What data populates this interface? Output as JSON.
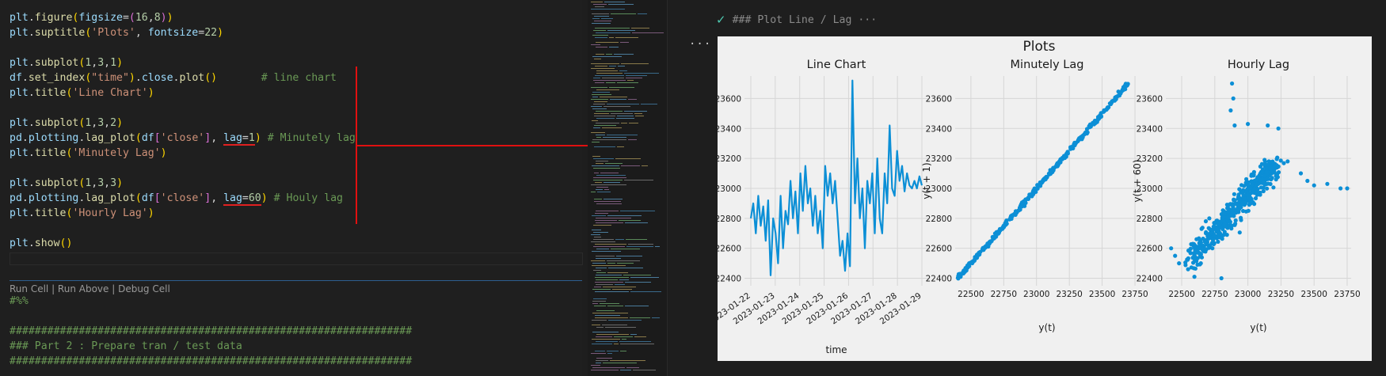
{
  "code_lines": [
    {
      "parts": [
        [
          "t-var",
          "plt"
        ],
        [
          "t-pn",
          "."
        ],
        [
          "t-fn",
          "figure"
        ],
        [
          "t-br1",
          "("
        ],
        [
          "t-var",
          "figsize"
        ],
        [
          "t-pn",
          "="
        ],
        [
          "t-br2",
          "("
        ],
        [
          "t-num",
          "16"
        ],
        [
          "t-pn",
          ","
        ],
        [
          "t-num",
          "8"
        ],
        [
          "t-br2",
          ")"
        ],
        [
          "t-br1",
          ")"
        ]
      ]
    },
    {
      "parts": [
        [
          "t-var",
          "plt"
        ],
        [
          "t-pn",
          "."
        ],
        [
          "t-fn",
          "suptitle"
        ],
        [
          "t-br1",
          "("
        ],
        [
          "t-str",
          "'Plots'"
        ],
        [
          "t-pn",
          ", "
        ],
        [
          "t-var",
          "fontsize"
        ],
        [
          "t-pn",
          "="
        ],
        [
          "t-num",
          "22"
        ],
        [
          "t-br1",
          ")"
        ]
      ]
    },
    {
      "parts": []
    },
    {
      "parts": [
        [
          "t-var",
          "plt"
        ],
        [
          "t-pn",
          "."
        ],
        [
          "t-fn",
          "subplot"
        ],
        [
          "t-br1",
          "("
        ],
        [
          "t-num",
          "1"
        ],
        [
          "t-pn",
          ","
        ],
        [
          "t-num",
          "3"
        ],
        [
          "t-pn",
          ","
        ],
        [
          "t-num",
          "1"
        ],
        [
          "t-br1",
          ")"
        ]
      ]
    },
    {
      "parts": [
        [
          "t-var",
          "df"
        ],
        [
          "t-pn",
          "."
        ],
        [
          "t-fn",
          "set_index"
        ],
        [
          "t-br1",
          "("
        ],
        [
          "t-str",
          "\"time\""
        ],
        [
          "t-br1",
          ")"
        ],
        [
          "t-pn",
          "."
        ],
        [
          "t-var",
          "close"
        ],
        [
          "t-pn",
          "."
        ],
        [
          "t-fn",
          "plot"
        ],
        [
          "t-br1",
          "()"
        ],
        [
          "t-pn",
          "       "
        ],
        [
          "t-cm",
          "# line chart"
        ]
      ]
    },
    {
      "parts": [
        [
          "t-var",
          "plt"
        ],
        [
          "t-pn",
          "."
        ],
        [
          "t-fn",
          "title"
        ],
        [
          "t-br1",
          "("
        ],
        [
          "t-str",
          "'Line Chart'"
        ],
        [
          "t-br1",
          ")"
        ]
      ]
    },
    {
      "parts": []
    },
    {
      "parts": [
        [
          "t-var",
          "plt"
        ],
        [
          "t-pn",
          "."
        ],
        [
          "t-fn",
          "subplot"
        ],
        [
          "t-br1",
          "("
        ],
        [
          "t-num",
          "1"
        ],
        [
          "t-pn",
          ","
        ],
        [
          "t-num",
          "3"
        ],
        [
          "t-pn",
          ","
        ],
        [
          "t-num",
          "2"
        ],
        [
          "t-br1",
          ")"
        ]
      ]
    },
    {
      "parts": [
        [
          "t-var",
          "pd"
        ],
        [
          "t-pn",
          "."
        ],
        [
          "t-var",
          "plotting"
        ],
        [
          "t-pn",
          "."
        ],
        [
          "t-fn",
          "lag_plot"
        ],
        [
          "t-br1",
          "("
        ],
        [
          "t-var",
          "df"
        ],
        [
          "t-br2",
          "["
        ],
        [
          "t-str",
          "'close'"
        ],
        [
          "t-br2",
          "]"
        ],
        [
          "t-pn",
          ", "
        ],
        [
          "t-var ul",
          "lag"
        ],
        [
          "t-pn ul",
          "="
        ],
        [
          "t-num ul",
          "1"
        ],
        [
          "t-br1",
          ")"
        ],
        [
          "t-pn",
          " "
        ],
        [
          "t-cm",
          "# Minutely lag"
        ]
      ]
    },
    {
      "parts": [
        [
          "t-var",
          "plt"
        ],
        [
          "t-pn",
          "."
        ],
        [
          "t-fn",
          "title"
        ],
        [
          "t-br1",
          "("
        ],
        [
          "t-str",
          "'Minutely Lag'"
        ],
        [
          "t-br1",
          ")"
        ]
      ]
    },
    {
      "parts": []
    },
    {
      "parts": [
        [
          "t-var",
          "plt"
        ],
        [
          "t-pn",
          "."
        ],
        [
          "t-fn",
          "subplot"
        ],
        [
          "t-br1",
          "("
        ],
        [
          "t-num",
          "1"
        ],
        [
          "t-pn",
          ","
        ],
        [
          "t-num",
          "3"
        ],
        [
          "t-pn",
          ","
        ],
        [
          "t-num",
          "3"
        ],
        [
          "t-br1",
          ")"
        ]
      ]
    },
    {
      "parts": [
        [
          "t-var",
          "pd"
        ],
        [
          "t-pn",
          "."
        ],
        [
          "t-var",
          "plotting"
        ],
        [
          "t-pn",
          "."
        ],
        [
          "t-fn",
          "lag_plot"
        ],
        [
          "t-br1",
          "("
        ],
        [
          "t-var",
          "df"
        ],
        [
          "t-br2",
          "["
        ],
        [
          "t-str",
          "'close'"
        ],
        [
          "t-br2",
          "]"
        ],
        [
          "t-pn",
          ", "
        ],
        [
          "t-var ul",
          "lag"
        ],
        [
          "t-pn ul",
          "="
        ],
        [
          "t-num ul",
          "60"
        ],
        [
          "t-br1",
          ")"
        ],
        [
          "t-pn",
          " "
        ],
        [
          "t-cm",
          "# Houly lag"
        ]
      ]
    },
    {
      "parts": [
        [
          "t-var",
          "plt"
        ],
        [
          "t-pn",
          "."
        ],
        [
          "t-fn",
          "title"
        ],
        [
          "t-br1",
          "("
        ],
        [
          "t-str",
          "'Hourly Lag'"
        ],
        [
          "t-br1",
          ")"
        ]
      ]
    },
    {
      "parts": []
    },
    {
      "parts": [
        [
          "t-var",
          "plt"
        ],
        [
          "t-pn",
          "."
        ],
        [
          "t-fn",
          "show"
        ],
        [
          "t-br1",
          "()"
        ]
      ]
    }
  ],
  "codelens": "Run Cell | Run Above | Debug Cell",
  "code_after": [
    {
      "parts": [
        [
          "t-cm",
          "#%%"
        ]
      ]
    },
    {
      "parts": []
    },
    {
      "parts": [
        [
          "t-cm",
          "################################################################"
        ]
      ]
    },
    {
      "parts": [
        [
          "t-cm",
          "### Part 2 : Prepare tran / test data"
        ]
      ]
    },
    {
      "parts": [
        [
          "t-cm",
          "################################################################"
        ]
      ]
    }
  ],
  "output_header": "### Plot Line / Lag ···",
  "more_dots": "···",
  "chart_data": [
    {
      "type": "line",
      "suptitle": "Plots",
      "title": "Line Chart",
      "xlabel": "time",
      "ylabel": "",
      "x_ticks": [
        "2023-01-22",
        "2023-01-23",
        "2023-01-24",
        "2023-01-25",
        "2023-01-26",
        "2023-01-27",
        "2023-01-28",
        "2023-01-29"
      ],
      "y_ticks": [
        22400,
        22600,
        22800,
        23000,
        23200,
        23400,
        23600
      ],
      "ylim": [
        22350,
        23750
      ],
      "series": [
        {
          "values": [
            22800,
            22900,
            22700,
            22950,
            22750,
            22880,
            22650,
            22920,
            22420,
            22800,
            22700,
            22500,
            22950,
            22600,
            22850,
            22760,
            23050,
            22800,
            22980,
            22700,
            23100,
            22850,
            23150,
            22900,
            23000,
            22750,
            22950,
            22700,
            22850,
            22600,
            23150,
            22950,
            23100,
            22900,
            23050,
            22800,
            22550,
            22650,
            22450,
            22700,
            22480,
            23720,
            22900,
            23200,
            22800,
            23000,
            22600,
            23050,
            22900,
            23100,
            22700,
            23200,
            22800,
            22700,
            23100,
            22900,
            23420,
            23000,
            22950,
            23250,
            23050,
            23150,
            22980,
            23100,
            23020,
            23000,
            23050,
            23000,
            23080,
            23020
          ]
        }
      ]
    },
    {
      "type": "scatter",
      "title": "Minutely Lag",
      "xlabel": "y(t)",
      "ylabel": "y(t + 1)",
      "x_ticks": [
        22500,
        22750,
        23000,
        23250,
        23500,
        23750
      ],
      "y_ticks": [
        22400,
        22600,
        22800,
        23000,
        23200,
        23400,
        23600
      ],
      "xlim": [
        22380,
        23780
      ],
      "ylim": [
        22350,
        23750
      ]
    },
    {
      "type": "scatter",
      "title": "Hourly Lag",
      "xlabel": "y(t)",
      "ylabel": "y(t + 60)",
      "x_ticks": [
        22500,
        22750,
        23000,
        23250,
        23500,
        23750
      ],
      "y_ticks": [
        22400,
        22600,
        22800,
        23000,
        23200,
        23400,
        23600
      ],
      "xlim": [
        22380,
        23780
      ],
      "ylim": [
        22350,
        23750
      ]
    }
  ],
  "colors": {
    "series": "#0c8fd6",
    "annotation": "#e01010"
  }
}
